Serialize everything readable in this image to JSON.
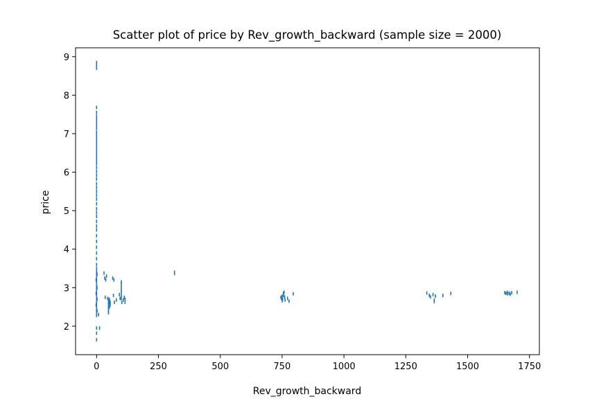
{
  "chart_data": {
    "type": "scatter",
    "title": "Scatter plot of price by Rev_growth_backward (sample size = 2000)",
    "xlabel": "Rev_growth_backward",
    "ylabel": "price",
    "xlim": [
      -85,
      1790
    ],
    "ylim": [
      1.26,
      9.23
    ],
    "xticks": [
      0,
      250,
      500,
      750,
      1000,
      1250,
      1500,
      1750
    ],
    "yticks": [
      2,
      3,
      4,
      5,
      6,
      7,
      8,
      9
    ],
    "marker_color": "#1f77b4",
    "grid": false,
    "points": [
      {
        "x": 0,
        "y": 8.85
      },
      {
        "x": 0,
        "y": 8.78
      },
      {
        "x": 0,
        "y": 8.7
      },
      {
        "x": 0,
        "y": 7.68
      },
      {
        "x": 0,
        "y": 7.55
      },
      {
        "x": 0,
        "y": 7.45
      },
      {
        "x": 0,
        "y": 7.38
      },
      {
        "x": 0,
        "y": 7.3
      },
      {
        "x": 0,
        "y": 7.22
      },
      {
        "x": 0,
        "y": 7.15
      },
      {
        "x": 0,
        "y": 7.05
      },
      {
        "x": 0,
        "y": 6.98
      },
      {
        "x": 0,
        "y": 6.9
      },
      {
        "x": 0,
        "y": 6.82
      },
      {
        "x": 0,
        "y": 6.75
      },
      {
        "x": 0,
        "y": 6.68
      },
      {
        "x": 0,
        "y": 6.6
      },
      {
        "x": 0,
        "y": 6.52
      },
      {
        "x": 0,
        "y": 6.45
      },
      {
        "x": 0,
        "y": 6.38
      },
      {
        "x": 0,
        "y": 6.3
      },
      {
        "x": 0,
        "y": 6.22
      },
      {
        "x": 0,
        "y": 6.12
      },
      {
        "x": 0,
        "y": 6.02
      },
      {
        "x": 0,
        "y": 5.92
      },
      {
        "x": 0,
        "y": 5.82
      },
      {
        "x": 0,
        "y": 5.7
      },
      {
        "x": 0,
        "y": 5.6
      },
      {
        "x": 0,
        "y": 5.5
      },
      {
        "x": 0,
        "y": 5.4
      },
      {
        "x": 0,
        "y": 5.3
      },
      {
        "x": 0,
        "y": 5.18
      },
      {
        "x": 0,
        "y": 5.05
      },
      {
        "x": 0,
        "y": 4.95
      },
      {
        "x": 0,
        "y": 4.85
      },
      {
        "x": 0,
        "y": 4.72
      },
      {
        "x": 0,
        "y": 4.6
      },
      {
        "x": 0,
        "y": 4.5
      },
      {
        "x": 0,
        "y": 4.35
      },
      {
        "x": 0,
        "y": 4.2
      },
      {
        "x": 0,
        "y": 4.05
      },
      {
        "x": 0,
        "y": 3.9
      },
      {
        "x": 0,
        "y": 3.75
      },
      {
        "x": 0,
        "y": 3.6
      },
      {
        "x": 0,
        "y": 3.5
      },
      {
        "x": 0,
        "y": 3.42
      },
      {
        "x": 0,
        "y": 3.38
      },
      {
        "x": 0,
        "y": 3.32
      },
      {
        "x": 0,
        "y": 3.25
      },
      {
        "x": 0,
        "y": 3.18
      },
      {
        "x": 0,
        "y": 3.1
      },
      {
        "x": 0,
        "y": 3.02
      },
      {
        "x": 0,
        "y": 2.95
      },
      {
        "x": 0,
        "y": 2.88
      },
      {
        "x": 0,
        "y": 2.8
      },
      {
        "x": 0,
        "y": 2.72
      },
      {
        "x": 0,
        "y": 2.65
      },
      {
        "x": 0,
        "y": 2.58
      },
      {
        "x": 0,
        "y": 2.5
      },
      {
        "x": 0,
        "y": 2.42
      },
      {
        "x": 0,
        "y": 2.35
      },
      {
        "x": 0,
        "y": 2.28
      },
      {
        "x": 2,
        "y": 3.35
      },
      {
        "x": 2,
        "y": 3.0
      },
      {
        "x": 2,
        "y": 2.7
      },
      {
        "x": 2,
        "y": 2.4
      },
      {
        "x": -2,
        "y": 3.2
      },
      {
        "x": -2,
        "y": 2.85
      },
      {
        "x": -2,
        "y": 2.55
      },
      {
        "x": 0,
        "y": 1.95
      },
      {
        "x": 0,
        "y": 1.82
      },
      {
        "x": 0,
        "y": 1.65
      },
      {
        "x": 8,
        "y": 2.3
      },
      {
        "x": 12,
        "y": 1.95
      },
      {
        "x": 30,
        "y": 3.38
      },
      {
        "x": 33,
        "y": 3.25
      },
      {
        "x": 37,
        "y": 3.2
      },
      {
        "x": 40,
        "y": 3.3
      },
      {
        "x": 35,
        "y": 2.75
      },
      {
        "x": 45,
        "y": 2.72
      },
      {
        "x": 50,
        "y": 2.7
      },
      {
        "x": 48,
        "y": 2.65
      },
      {
        "x": 48,
        "y": 2.6
      },
      {
        "x": 48,
        "y": 2.55
      },
      {
        "x": 48,
        "y": 2.5
      },
      {
        "x": 48,
        "y": 2.45
      },
      {
        "x": 48,
        "y": 2.4
      },
      {
        "x": 48,
        "y": 2.35
      },
      {
        "x": 52,
        "y": 2.68
      },
      {
        "x": 52,
        "y": 2.6
      },
      {
        "x": 52,
        "y": 2.5
      },
      {
        "x": 55,
        "y": 2.62
      },
      {
        "x": 55,
        "y": 2.55
      },
      {
        "x": 65,
        "y": 3.25
      },
      {
        "x": 70,
        "y": 3.2
      },
      {
        "x": 68,
        "y": 2.8
      },
      {
        "x": 72,
        "y": 2.62
      },
      {
        "x": 80,
        "y": 2.68
      },
      {
        "x": 92,
        "y": 2.82
      },
      {
        "x": 95,
        "y": 2.72
      },
      {
        "x": 100,
        "y": 3.15
      },
      {
        "x": 100,
        "y": 3.1
      },
      {
        "x": 100,
        "y": 3.02
      },
      {
        "x": 100,
        "y": 2.95
      },
      {
        "x": 100,
        "y": 2.88
      },
      {
        "x": 100,
        "y": 2.8
      },
      {
        "x": 100,
        "y": 2.72
      },
      {
        "x": 102,
        "y": 2.62
      },
      {
        "x": 108,
        "y": 2.68
      },
      {
        "x": 112,
        "y": 2.75
      },
      {
        "x": 115,
        "y": 2.7
      },
      {
        "x": 115,
        "y": 2.62
      },
      {
        "x": 315,
        "y": 3.4
      },
      {
        "x": 315,
        "y": 3.37
      },
      {
        "x": 745,
        "y": 2.75
      },
      {
        "x": 748,
        "y": 2.72
      },
      {
        "x": 750,
        "y": 2.78
      },
      {
        "x": 752,
        "y": 2.7
      },
      {
        "x": 755,
        "y": 2.85
      },
      {
        "x": 755,
        "y": 2.8
      },
      {
        "x": 758,
        "y": 2.88
      },
      {
        "x": 760,
        "y": 2.76
      },
      {
        "x": 762,
        "y": 2.68
      },
      {
        "x": 750,
        "y": 2.66
      },
      {
        "x": 772,
        "y": 2.72
      },
      {
        "x": 778,
        "y": 2.65
      },
      {
        "x": 795,
        "y": 2.84
      },
      {
        "x": 1335,
        "y": 2.86
      },
      {
        "x": 1345,
        "y": 2.8
      },
      {
        "x": 1350,
        "y": 2.76
      },
      {
        "x": 1360,
        "y": 2.82
      },
      {
        "x": 1365,
        "y": 2.68
      },
      {
        "x": 1365,
        "y": 2.64
      },
      {
        "x": 1370,
        "y": 2.78
      },
      {
        "x": 1400,
        "y": 2.8
      },
      {
        "x": 1432,
        "y": 2.85
      },
      {
        "x": 1650,
        "y": 2.87
      },
      {
        "x": 1655,
        "y": 2.85
      },
      {
        "x": 1660,
        "y": 2.88
      },
      {
        "x": 1662,
        "y": 2.84
      },
      {
        "x": 1668,
        "y": 2.86
      },
      {
        "x": 1672,
        "y": 2.83
      },
      {
        "x": 1678,
        "y": 2.87
      },
      {
        "x": 1700,
        "y": 2.88
      }
    ]
  }
}
